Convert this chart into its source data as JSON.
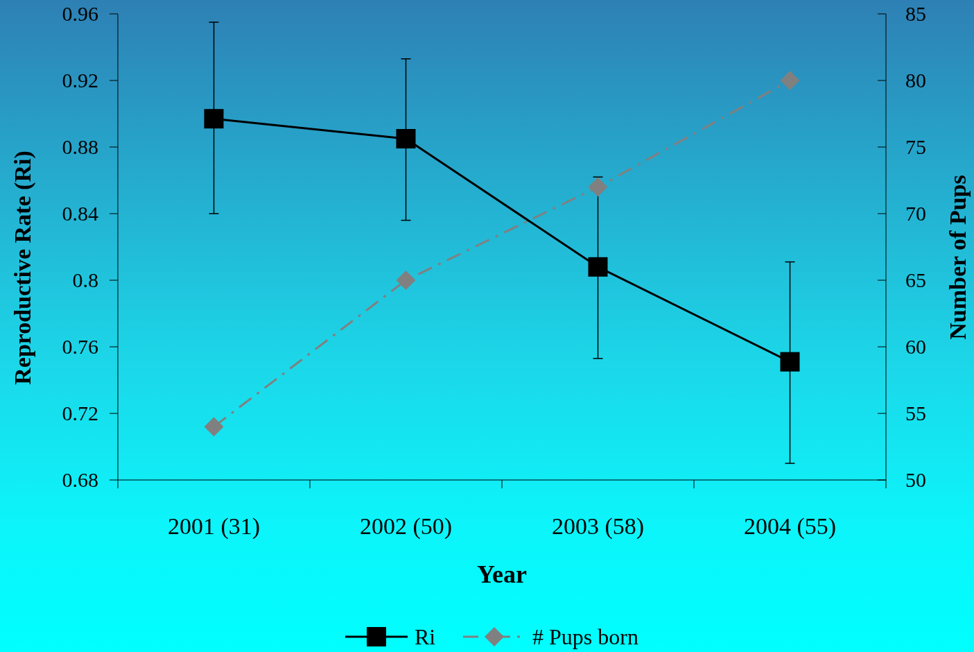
{
  "chart_data": {
    "type": "line",
    "xlabel": "Year",
    "ylabel": "Reproductive Rate (Ri)",
    "y2label": "Number of Pups",
    "categories": [
      "2001 (31)",
      "2002 (50)",
      "2003 (58)",
      "2004 (55)"
    ],
    "series": [
      {
        "name": "Ri",
        "color": "#000000",
        "values": [
          0.897,
          0.885,
          0.808,
          0.751
        ],
        "errors": [
          [
            0.84,
            0.955
          ],
          [
            0.836,
            0.933
          ],
          [
            0.753,
            0.862
          ],
          [
            0.69,
            0.811
          ]
        ],
        "marker": "square",
        "line_style": "solid"
      },
      {
        "name": "# Pups born",
        "color": "#808080",
        "values": [
          54,
          65,
          72,
          80
        ],
        "axis": "y2",
        "marker": "diamond",
        "line_style": "dashed"
      }
    ],
    "ylim": [
      0.68,
      0.96
    ],
    "yticks": [
      {
        "value": 0.68,
        "label": "0.68"
      },
      {
        "value": 0.72,
        "label": "0.72"
      },
      {
        "value": 0.76,
        "label": "0.76"
      },
      {
        "value": 0.8,
        "label": "0.8"
      },
      {
        "value": 0.84,
        "label": "0.84"
      },
      {
        "value": 0.88,
        "label": "0.88"
      },
      {
        "value": 0.92,
        "label": "0.92"
      },
      {
        "value": 0.96,
        "label": "0.96"
      }
    ],
    "y2lim": [
      50,
      85
    ],
    "y2ticks": [
      50,
      55,
      60,
      65,
      70,
      75,
      80,
      85
    ],
    "grid": false,
    "legend": "bottom"
  }
}
